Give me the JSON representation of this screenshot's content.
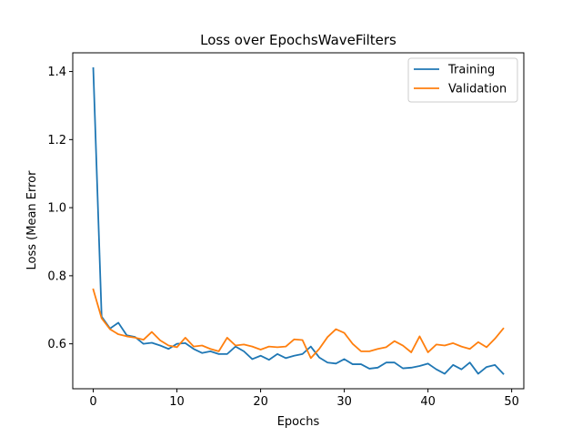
{
  "chart_data": {
    "type": "line",
    "title": "Loss over EpochsWaveFilters",
    "xlabel": "Epochs",
    "ylabel": "Loss (Mean Error",
    "xlim": [
      -2.45,
      51.45
    ],
    "ylim": [
      0.468,
      1.455
    ],
    "xticks": [
      0,
      10,
      20,
      30,
      40,
      50
    ],
    "yticks": [
      0.6,
      0.8,
      1.0,
      1.2,
      1.4
    ],
    "ytick_labels": [
      "0.6",
      "0.8",
      "1.0",
      "1.2",
      "1.4"
    ],
    "grid": false,
    "legend_position": "top-right",
    "x": [
      0,
      1,
      2,
      3,
      4,
      5,
      6,
      7,
      8,
      9,
      10,
      11,
      12,
      13,
      14,
      15,
      16,
      17,
      18,
      19,
      20,
      21,
      22,
      23,
      24,
      25,
      26,
      27,
      28,
      29,
      30,
      31,
      32,
      33,
      34,
      35,
      36,
      37,
      38,
      39,
      40,
      41,
      42,
      43,
      44,
      45,
      46,
      47,
      48,
      49
    ],
    "series": [
      {
        "name": "Training",
        "color": "#1f77b4",
        "values": [
          1.41,
          0.68,
          0.645,
          0.662,
          0.625,
          0.62,
          0.6,
          0.603,
          0.595,
          0.585,
          0.6,
          0.602,
          0.585,
          0.573,
          0.578,
          0.57,
          0.57,
          0.592,
          0.578,
          0.555,
          0.565,
          0.553,
          0.57,
          0.558,
          0.565,
          0.57,
          0.592,
          0.56,
          0.545,
          0.542,
          0.555,
          0.54,
          0.54,
          0.527,
          0.53,
          0.545,
          0.545,
          0.528,
          0.53,
          0.535,
          0.542,
          0.525,
          0.512,
          0.538,
          0.525,
          0.545,
          0.512,
          0.532,
          0.538,
          0.512
        ]
      },
      {
        "name": "Validation",
        "color": "#ff7f0e",
        "values": [
          0.76,
          0.675,
          0.643,
          0.628,
          0.622,
          0.618,
          0.612,
          0.635,
          0.61,
          0.595,
          0.59,
          0.618,
          0.592,
          0.595,
          0.585,
          0.578,
          0.618,
          0.595,
          0.598,
          0.592,
          0.583,
          0.592,
          0.59,
          0.592,
          0.613,
          0.611,
          0.558,
          0.585,
          0.62,
          0.643,
          0.632,
          0.6,
          0.578,
          0.578,
          0.585,
          0.59,
          0.608,
          0.595,
          0.575,
          0.622,
          0.575,
          0.598,
          0.595,
          0.602,
          0.592,
          0.585,
          0.605,
          0.59,
          0.615,
          0.645
        ]
      }
    ]
  }
}
